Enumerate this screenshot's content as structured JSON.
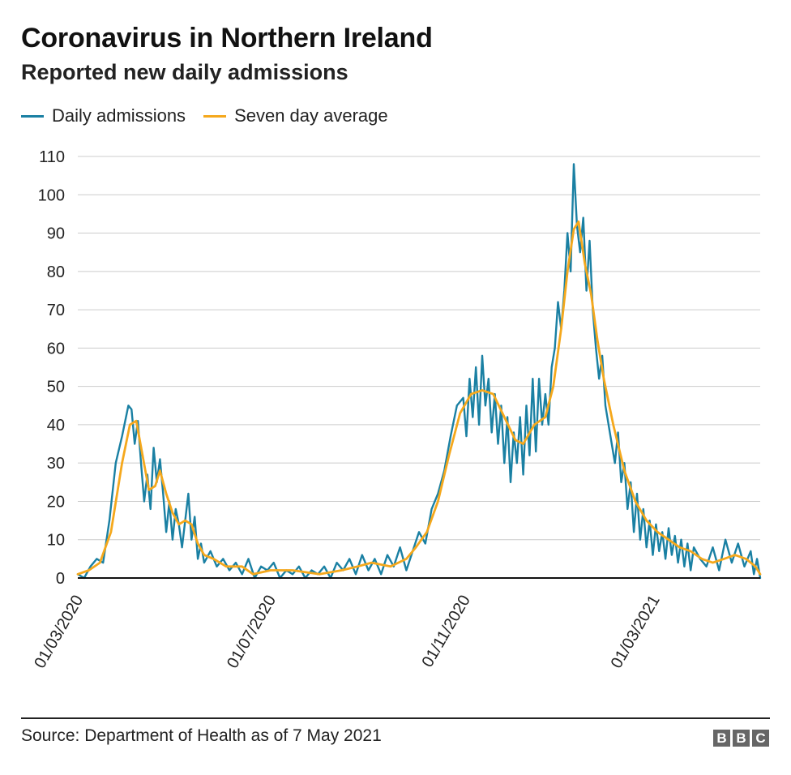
{
  "header": {
    "title": "Coronavirus in Northern Ireland",
    "subtitle": "Reported new daily admissions"
  },
  "footer": {
    "source": "Source: Department of Health as of 7 May 2021",
    "logo_letters": [
      "B",
      "B",
      "C"
    ]
  },
  "colors": {
    "daily": "#1a80a3",
    "average": "#f5a81c",
    "grid": "#cccccc",
    "axis": "#111111"
  },
  "chart_data": {
    "type": "line",
    "title": "Coronavirus in Northern Ireland",
    "subtitle": "Reported new daily admissions",
    "xlabel": "",
    "ylabel": "",
    "x_range": [
      "2020-03-01",
      "2021-05-07"
    ],
    "ylim": [
      0,
      110
    ],
    "yticks": [
      0,
      10,
      20,
      30,
      40,
      50,
      60,
      70,
      80,
      90,
      100,
      110
    ],
    "xticks": [
      {
        "date": "2020-03-01",
        "label": "01/03/2020"
      },
      {
        "date": "2020-07-01",
        "label": "01/07/2020"
      },
      {
        "date": "2020-11-01",
        "label": "01/11/2020"
      },
      {
        "date": "2021-03-01",
        "label": "01/03/2021"
      }
    ],
    "grid": true,
    "legend_position": "top-left",
    "series": [
      {
        "name": "Daily admissions",
        "color": "#1a80a3",
        "points": [
          [
            "2020-03-01",
            1
          ],
          [
            "2020-03-05",
            0
          ],
          [
            "2020-03-09",
            3
          ],
          [
            "2020-03-13",
            5
          ],
          [
            "2020-03-17",
            4
          ],
          [
            "2020-03-21",
            15
          ],
          [
            "2020-03-25",
            30
          ],
          [
            "2020-03-29",
            37
          ],
          [
            "2020-04-02",
            45
          ],
          [
            "2020-04-04",
            44
          ],
          [
            "2020-04-06",
            35
          ],
          [
            "2020-04-08",
            41
          ],
          [
            "2020-04-10",
            30
          ],
          [
            "2020-04-12",
            20
          ],
          [
            "2020-04-14",
            27
          ],
          [
            "2020-04-16",
            18
          ],
          [
            "2020-04-18",
            34
          ],
          [
            "2020-04-20",
            25
          ],
          [
            "2020-04-22",
            31
          ],
          [
            "2020-04-24",
            22
          ],
          [
            "2020-04-26",
            12
          ],
          [
            "2020-04-28",
            20
          ],
          [
            "2020-04-30",
            10
          ],
          [
            "2020-05-02",
            18
          ],
          [
            "2020-05-04",
            14
          ],
          [
            "2020-05-06",
            8
          ],
          [
            "2020-05-08",
            15
          ],
          [
            "2020-05-10",
            22
          ],
          [
            "2020-05-12",
            10
          ],
          [
            "2020-05-14",
            16
          ],
          [
            "2020-05-16",
            5
          ],
          [
            "2020-05-18",
            9
          ],
          [
            "2020-05-20",
            4
          ],
          [
            "2020-05-24",
            7
          ],
          [
            "2020-05-28",
            3
          ],
          [
            "2020-06-01",
            5
          ],
          [
            "2020-06-05",
            2
          ],
          [
            "2020-06-09",
            4
          ],
          [
            "2020-06-13",
            1
          ],
          [
            "2020-06-17",
            5
          ],
          [
            "2020-06-21",
            0
          ],
          [
            "2020-06-25",
            3
          ],
          [
            "2020-06-29",
            2
          ],
          [
            "2020-07-03",
            4
          ],
          [
            "2020-07-07",
            0
          ],
          [
            "2020-07-11",
            2
          ],
          [
            "2020-07-15",
            1
          ],
          [
            "2020-07-19",
            3
          ],
          [
            "2020-07-23",
            0
          ],
          [
            "2020-07-27",
            2
          ],
          [
            "2020-07-31",
            1
          ],
          [
            "2020-08-04",
            3
          ],
          [
            "2020-08-08",
            0
          ],
          [
            "2020-08-12",
            4
          ],
          [
            "2020-08-16",
            2
          ],
          [
            "2020-08-20",
            5
          ],
          [
            "2020-08-24",
            1
          ],
          [
            "2020-08-28",
            6
          ],
          [
            "2020-09-01",
            2
          ],
          [
            "2020-09-05",
            5
          ],
          [
            "2020-09-09",
            1
          ],
          [
            "2020-09-13",
            6
          ],
          [
            "2020-09-17",
            3
          ],
          [
            "2020-09-21",
            8
          ],
          [
            "2020-09-25",
            2
          ],
          [
            "2020-09-29",
            7
          ],
          [
            "2020-10-03",
            12
          ],
          [
            "2020-10-07",
            9
          ],
          [
            "2020-10-11",
            18
          ],
          [
            "2020-10-15",
            22
          ],
          [
            "2020-10-19",
            28
          ],
          [
            "2020-10-23",
            37
          ],
          [
            "2020-10-27",
            45
          ],
          [
            "2020-10-31",
            47
          ],
          [
            "2020-11-02",
            37
          ],
          [
            "2020-11-04",
            52
          ],
          [
            "2020-11-06",
            42
          ],
          [
            "2020-11-08",
            55
          ],
          [
            "2020-11-10",
            40
          ],
          [
            "2020-11-12",
            58
          ],
          [
            "2020-11-14",
            45
          ],
          [
            "2020-11-16",
            52
          ],
          [
            "2020-11-18",
            38
          ],
          [
            "2020-11-20",
            48
          ],
          [
            "2020-11-22",
            35
          ],
          [
            "2020-11-24",
            45
          ],
          [
            "2020-11-26",
            30
          ],
          [
            "2020-11-28",
            42
          ],
          [
            "2020-11-30",
            25
          ],
          [
            "2020-12-02",
            38
          ],
          [
            "2020-12-04",
            30
          ],
          [
            "2020-12-06",
            42
          ],
          [
            "2020-12-08",
            27
          ],
          [
            "2020-12-10",
            45
          ],
          [
            "2020-12-12",
            32
          ],
          [
            "2020-12-14",
            52
          ],
          [
            "2020-12-16",
            33
          ],
          [
            "2020-12-18",
            52
          ],
          [
            "2020-12-20",
            40
          ],
          [
            "2020-12-22",
            48
          ],
          [
            "2020-12-24",
            40
          ],
          [
            "2020-12-26",
            55
          ],
          [
            "2020-12-28",
            60
          ],
          [
            "2020-12-30",
            72
          ],
          [
            "2021-01-01",
            65
          ],
          [
            "2021-01-03",
            75
          ],
          [
            "2021-01-05",
            90
          ],
          [
            "2021-01-07",
            80
          ],
          [
            "2021-01-09",
            108
          ],
          [
            "2021-01-11",
            92
          ],
          [
            "2021-01-13",
            85
          ],
          [
            "2021-01-15",
            94
          ],
          [
            "2021-01-17",
            75
          ],
          [
            "2021-01-19",
            88
          ],
          [
            "2021-01-21",
            70
          ],
          [
            "2021-01-23",
            60
          ],
          [
            "2021-01-25",
            52
          ],
          [
            "2021-01-27",
            58
          ],
          [
            "2021-01-29",
            45
          ],
          [
            "2021-01-31",
            40
          ],
          [
            "2021-02-02",
            35
          ],
          [
            "2021-02-04",
            30
          ],
          [
            "2021-02-06",
            38
          ],
          [
            "2021-02-08",
            25
          ],
          [
            "2021-02-10",
            30
          ],
          [
            "2021-02-12",
            18
          ],
          [
            "2021-02-14",
            25
          ],
          [
            "2021-02-16",
            12
          ],
          [
            "2021-02-18",
            22
          ],
          [
            "2021-02-20",
            10
          ],
          [
            "2021-02-22",
            18
          ],
          [
            "2021-02-24",
            8
          ],
          [
            "2021-02-26",
            15
          ],
          [
            "2021-02-28",
            6
          ],
          [
            "2021-03-02",
            14
          ],
          [
            "2021-03-04",
            7
          ],
          [
            "2021-03-06",
            12
          ],
          [
            "2021-03-08",
            5
          ],
          [
            "2021-03-10",
            13
          ],
          [
            "2021-03-12",
            6
          ],
          [
            "2021-03-14",
            11
          ],
          [
            "2021-03-16",
            4
          ],
          [
            "2021-03-18",
            10
          ],
          [
            "2021-03-20",
            3
          ],
          [
            "2021-03-22",
            9
          ],
          [
            "2021-03-24",
            2
          ],
          [
            "2021-03-26",
            8
          ],
          [
            "2021-03-30",
            5
          ],
          [
            "2021-04-03",
            3
          ],
          [
            "2021-04-07",
            8
          ],
          [
            "2021-04-11",
            2
          ],
          [
            "2021-04-15",
            10
          ],
          [
            "2021-04-19",
            4
          ],
          [
            "2021-04-23",
            9
          ],
          [
            "2021-04-27",
            3
          ],
          [
            "2021-05-01",
            7
          ],
          [
            "2021-05-03",
            1
          ],
          [
            "2021-05-05",
            5
          ],
          [
            "2021-05-07",
            0
          ]
        ]
      },
      {
        "name": "Seven day average",
        "color": "#f5a81c",
        "points": [
          [
            "2020-03-01",
            1
          ],
          [
            "2020-03-08",
            2
          ],
          [
            "2020-03-15",
            4
          ],
          [
            "2020-03-22",
            12
          ],
          [
            "2020-03-29",
            30
          ],
          [
            "2020-04-03",
            40
          ],
          [
            "2020-04-07",
            41
          ],
          [
            "2020-04-11",
            32
          ],
          [
            "2020-04-15",
            23
          ],
          [
            "2020-04-19",
            24
          ],
          [
            "2020-04-22",
            28
          ],
          [
            "2020-04-26",
            22
          ],
          [
            "2020-04-30",
            17
          ],
          [
            "2020-05-04",
            14
          ],
          [
            "2020-05-08",
            15
          ],
          [
            "2020-05-12",
            14
          ],
          [
            "2020-05-16",
            9
          ],
          [
            "2020-05-20",
            6
          ],
          [
            "2020-05-26",
            5
          ],
          [
            "2020-06-03",
            3
          ],
          [
            "2020-06-13",
            3
          ],
          [
            "2020-06-20",
            1
          ],
          [
            "2020-07-01",
            2
          ],
          [
            "2020-07-15",
            2
          ],
          [
            "2020-08-01",
            1
          ],
          [
            "2020-08-15",
            2
          ],
          [
            "2020-08-25",
            3
          ],
          [
            "2020-09-03",
            4
          ],
          [
            "2020-09-15",
            3
          ],
          [
            "2020-09-25",
            5
          ],
          [
            "2020-10-01",
            8
          ],
          [
            "2020-10-08",
            12
          ],
          [
            "2020-10-15",
            20
          ],
          [
            "2020-10-22",
            32
          ],
          [
            "2020-10-29",
            43
          ],
          [
            "2020-11-05",
            48
          ],
          [
            "2020-11-12",
            49
          ],
          [
            "2020-11-19",
            48
          ],
          [
            "2020-11-26",
            42
          ],
          [
            "2020-12-03",
            36
          ],
          [
            "2020-12-08",
            35
          ],
          [
            "2020-12-15",
            40
          ],
          [
            "2020-12-22",
            42
          ],
          [
            "2020-12-27",
            50
          ],
          [
            "2021-01-01",
            65
          ],
          [
            "2021-01-05",
            80
          ],
          [
            "2021-01-09",
            91
          ],
          [
            "2021-01-12",
            93
          ],
          [
            "2021-01-16",
            82
          ],
          [
            "2021-01-20",
            74
          ],
          [
            "2021-01-24",
            62
          ],
          [
            "2021-01-28",
            52
          ],
          [
            "2021-02-03",
            40
          ],
          [
            "2021-02-10",
            28
          ],
          [
            "2021-02-17",
            20
          ],
          [
            "2021-02-24",
            15
          ],
          [
            "2021-03-03",
            12
          ],
          [
            "2021-03-10",
            10
          ],
          [
            "2021-03-17",
            8
          ],
          [
            "2021-03-24",
            7
          ],
          [
            "2021-03-31",
            5
          ],
          [
            "2021-04-07",
            4
          ],
          [
            "2021-04-14",
            5
          ],
          [
            "2021-04-21",
            6
          ],
          [
            "2021-04-28",
            5
          ],
          [
            "2021-05-04",
            3
          ],
          [
            "2021-05-07",
            1
          ]
        ]
      }
    ]
  }
}
